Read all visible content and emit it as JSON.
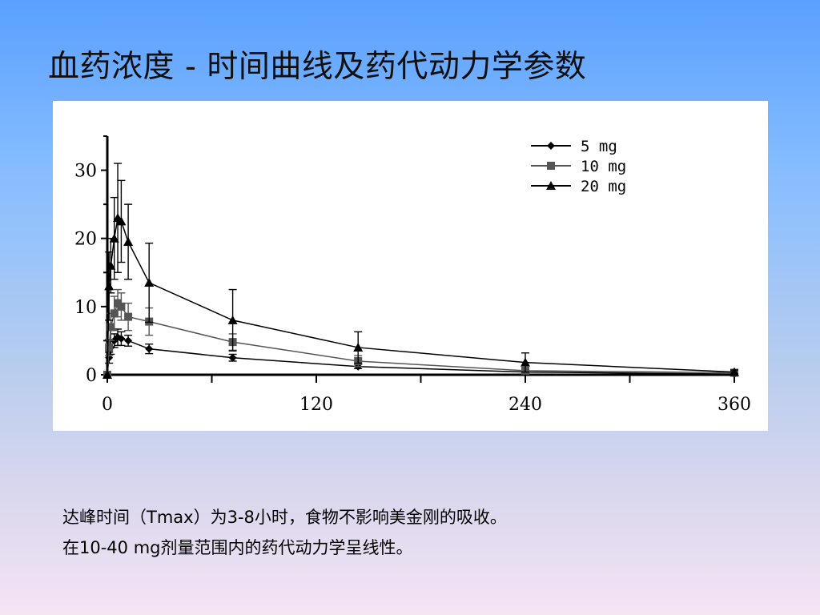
{
  "slide": {
    "title": "血药浓度 - 时间曲线及药代动力学参数",
    "notes": [
      "达峰时间（Tmax）为3-8小时，食物不影响美金刚的吸收。",
      "在10-40 mg剂量范围内的药代动力学呈线性。"
    ]
  },
  "chart_data": {
    "type": "line",
    "title": "",
    "xlabel": "",
    "ylabel": "",
    "xlim": [
      0,
      360
    ],
    "ylim": [
      0,
      35
    ],
    "xticks": [
      0,
      120,
      240,
      360
    ],
    "yticks": [
      0,
      10,
      20,
      30
    ],
    "legend_position": "top-right",
    "grid": false,
    "series": [
      {
        "name": "5 mg",
        "marker": "diamond",
        "color": "#000000",
        "points": [
          {
            "x": 0,
            "y": 0,
            "err": 0
          },
          {
            "x": 1,
            "y": 2.5,
            "err": 0.8
          },
          {
            "x": 2,
            "y": 4,
            "err": 1
          },
          {
            "x": 4,
            "y": 5,
            "err": 1
          },
          {
            "x": 6,
            "y": 5.5,
            "err": 1.2
          },
          {
            "x": 8,
            "y": 5.3,
            "err": 1
          },
          {
            "x": 12,
            "y": 5,
            "err": 0.8
          },
          {
            "x": 24,
            "y": 3.8,
            "err": 0.7
          },
          {
            "x": 72,
            "y": 2.5,
            "err": 0.5
          },
          {
            "x": 144,
            "y": 1.2,
            "err": 0.3
          },
          {
            "x": 240,
            "y": 0.4,
            "err": 0.2
          },
          {
            "x": 360,
            "y": 0.1,
            "err": 0.1
          }
        ]
      },
      {
        "name": "10 mg",
        "marker": "square",
        "color": "#555555",
        "points": [
          {
            "x": 0,
            "y": 0,
            "err": 0
          },
          {
            "x": 1,
            "y": 4,
            "err": 1.2
          },
          {
            "x": 2,
            "y": 7,
            "err": 2
          },
          {
            "x": 4,
            "y": 9,
            "err": 2.5
          },
          {
            "x": 6,
            "y": 10.5,
            "err": 2
          },
          {
            "x": 8,
            "y": 10,
            "err": 2
          },
          {
            "x": 12,
            "y": 8.5,
            "err": 2
          },
          {
            "x": 24,
            "y": 7.8,
            "err": 2
          },
          {
            "x": 72,
            "y": 4.8,
            "err": 1.2
          },
          {
            "x": 144,
            "y": 2,
            "err": 0.8
          },
          {
            "x": 240,
            "y": 0.6,
            "err": 0.3
          },
          {
            "x": 360,
            "y": 0.3,
            "err": 0.2
          }
        ]
      },
      {
        "name": "20 mg",
        "marker": "triangle",
        "color": "#000000",
        "points": [
          {
            "x": 0,
            "y": 0,
            "err": 0
          },
          {
            "x": 1,
            "y": 13,
            "err": 5
          },
          {
            "x": 2,
            "y": 16,
            "err": 4
          },
          {
            "x": 4,
            "y": 20,
            "err": 6
          },
          {
            "x": 6,
            "y": 23,
            "err": 8
          },
          {
            "x": 8,
            "y": 22.5,
            "err": 6
          },
          {
            "x": 12,
            "y": 19.5,
            "err": 5.5
          },
          {
            "x": 24,
            "y": 13.5,
            "err": 5.8
          },
          {
            "x": 72,
            "y": 8,
            "err": 4.5
          },
          {
            "x": 144,
            "y": 4,
            "err": 2.3
          },
          {
            "x": 240,
            "y": 1.8,
            "err": 1.4
          },
          {
            "x": 360,
            "y": 0.4,
            "err": 0.3
          }
        ]
      }
    ]
  }
}
